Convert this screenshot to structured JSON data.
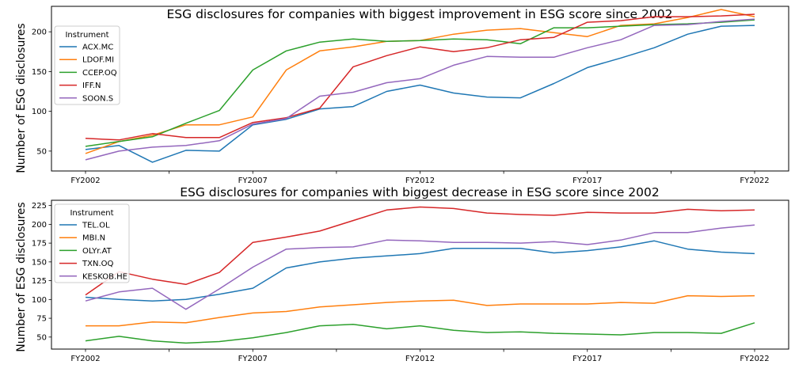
{
  "chart_data": [
    {
      "type": "line",
      "title": "ESG disclosures for companies with biggest improvement in ESG score since 2002",
      "xlabel": "",
      "ylabel": "Number of ESG disclosures",
      "x": [
        "FY2002",
        "FY2003",
        "FY2004",
        "FY2005",
        "FY2006",
        "FY2007",
        "FY2008",
        "FY2009",
        "FY2010",
        "FY2011",
        "FY2012",
        "FY2013",
        "FY2014",
        "FY2015",
        "FY2016",
        "FY2017",
        "FY2018",
        "FY2019",
        "FY2020",
        "FY2021",
        "FY2022"
      ],
      "xticks": [
        "FY2002",
        "FY2007",
        "FY2012",
        "FY2017",
        "FY2022"
      ],
      "yticks": [
        50,
        100,
        150,
        200
      ],
      "ylim": [
        25,
        232
      ],
      "grid": false,
      "legend": {
        "title": "Instrument",
        "placement": "upper-left"
      },
      "series": [
        {
          "name": "ACX.MC",
          "color": "#1f77b4",
          "values": [
            52,
            57,
            36,
            51,
            50,
            83,
            90,
            103,
            106,
            125,
            133,
            123,
            118,
            117,
            135,
            155,
            167,
            180,
            197,
            207,
            208
          ]
        },
        {
          "name": "LDOF.MI",
          "color": "#ff7f0e",
          "values": [
            47,
            62,
            70,
            83,
            83,
            93,
            152,
            176,
            181,
            188,
            189,
            197,
            202,
            204,
            199,
            194,
            208,
            210,
            218,
            228,
            219
          ]
        },
        {
          "name": "CCEP.OQ",
          "color": "#2ca02c",
          "values": [
            56,
            62,
            68,
            85,
            101,
            152,
            176,
            187,
            191,
            188,
            189,
            191,
            190,
            185,
            205,
            205,
            207,
            209,
            210,
            212,
            215
          ]
        },
        {
          "name": "IFF.N",
          "color": "#d62728",
          "values": [
            66,
            64,
            72,
            67,
            67,
            86,
            92,
            104,
            156,
            170,
            181,
            175,
            180,
            190,
            193,
            212,
            214,
            219,
            219,
            220,
            222
          ]
        },
        {
          "name": "SOON.S",
          "color": "#9467bd",
          "values": [
            39,
            50,
            55,
            57,
            63,
            84,
            91,
            119,
            124,
            136,
            141,
            158,
            169,
            168,
            168,
            180,
            190,
            208,
            209,
            213,
            216
          ]
        }
      ]
    },
    {
      "type": "line",
      "title": "ESG disclosures for companies with biggest decrease in ESG score since 2002",
      "xlabel": "",
      "ylabel": "Number of ESG disclosures",
      "x": [
        "FY2002",
        "FY2003",
        "FY2004",
        "FY2005",
        "FY2006",
        "FY2007",
        "FY2008",
        "FY2009",
        "FY2010",
        "FY2011",
        "FY2012",
        "FY2013",
        "FY2014",
        "FY2015",
        "FY2016",
        "FY2017",
        "FY2018",
        "FY2019",
        "FY2020",
        "FY2021",
        "FY2022"
      ],
      "xticks": [
        "FY2002",
        "FY2007",
        "FY2012",
        "FY2017",
        "FY2022"
      ],
      "yticks": [
        50,
        75,
        100,
        125,
        150,
        175,
        200,
        225
      ],
      "ylim": [
        34,
        232
      ],
      "grid": false,
      "legend": {
        "title": "Instrument",
        "placement": "upper-left"
      },
      "series": [
        {
          "name": "TEL.OL",
          "color": "#1f77b4",
          "values": [
            103,
            100,
            98,
            100,
            107,
            115,
            142,
            150,
            155,
            158,
            161,
            168,
            168,
            168,
            162,
            165,
            170,
            178,
            167,
            163,
            161
          ]
        },
        {
          "name": "MBI.N",
          "color": "#ff7f0e",
          "values": [
            65,
            65,
            70,
            69,
            76,
            82,
            84,
            90,
            93,
            96,
            98,
            99,
            92,
            94,
            94,
            94,
            96,
            95,
            105,
            104,
            105
          ]
        },
        {
          "name": "OLYr.AT",
          "color": "#2ca02c",
          "values": [
            45,
            51,
            45,
            42,
            44,
            49,
            56,
            65,
            67,
            61,
            65,
            59,
            56,
            57,
            55,
            54,
            53,
            56,
            56,
            55,
            69
          ]
        },
        {
          "name": "TXN.OQ",
          "color": "#d62728",
          "values": [
            106,
            137,
            127,
            120,
            136,
            176,
            183,
            191,
            205,
            219,
            223,
            221,
            215,
            213,
            212,
            216,
            215,
            215,
            220,
            218,
            219
          ]
        },
        {
          "name": "KESKOB.HE",
          "color": "#9467bd",
          "values": [
            98,
            110,
            115,
            87,
            114,
            143,
            167,
            169,
            170,
            179,
            178,
            176,
            176,
            175,
            177,
            173,
            179,
            189,
            189,
            195,
            199
          ]
        }
      ]
    }
  ]
}
